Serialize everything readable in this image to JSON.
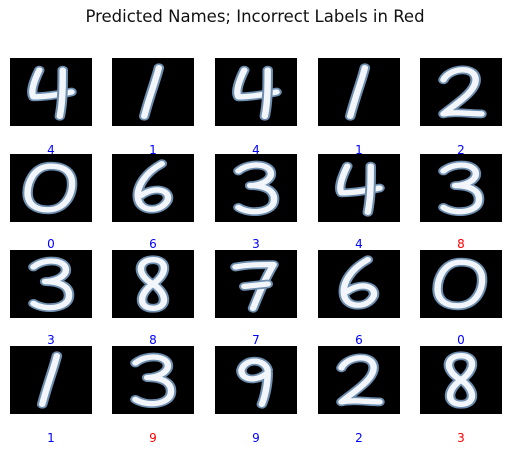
{
  "title": "Predicted Names; Incorrect Labels in Red",
  "colors": {
    "correct": "#0000ff",
    "incorrect": "#ff0000"
  },
  "digits": [
    {
      "image": "handwritten-4",
      "label": "4",
      "status": "correct"
    },
    {
      "image": "handwritten-1",
      "label": "1",
      "status": "correct"
    },
    {
      "image": "handwritten-4",
      "label": "4",
      "status": "correct"
    },
    {
      "image": "handwritten-1",
      "label": "1",
      "status": "correct"
    },
    {
      "image": "handwritten-2",
      "label": "2",
      "status": "correct"
    },
    {
      "image": "handwritten-0",
      "label": "0",
      "status": "correct"
    },
    {
      "image": "handwritten-6",
      "label": "6",
      "status": "correct"
    },
    {
      "image": "handwritten-3",
      "label": "3",
      "status": "correct"
    },
    {
      "image": "handwritten-4",
      "label": "4",
      "status": "correct"
    },
    {
      "image": "handwritten-3",
      "label": "8",
      "status": "incorrect"
    },
    {
      "image": "handwritten-3",
      "label": "3",
      "status": "correct"
    },
    {
      "image": "handwritten-8",
      "label": "8",
      "status": "correct"
    },
    {
      "image": "handwritten-7",
      "label": "7",
      "status": "correct"
    },
    {
      "image": "handwritten-6",
      "label": "6",
      "status": "correct"
    },
    {
      "image": "handwritten-0",
      "label": "0",
      "status": "correct"
    },
    {
      "image": "handwritten-1",
      "label": "1",
      "status": "correct"
    },
    {
      "image": "handwritten-3",
      "label": "9",
      "status": "incorrect"
    },
    {
      "image": "handwritten-9",
      "label": "9",
      "status": "correct"
    },
    {
      "image": "handwritten-2",
      "label": "2",
      "status": "correct"
    },
    {
      "image": "handwritten-8",
      "label": "3",
      "status": "incorrect"
    }
  ]
}
